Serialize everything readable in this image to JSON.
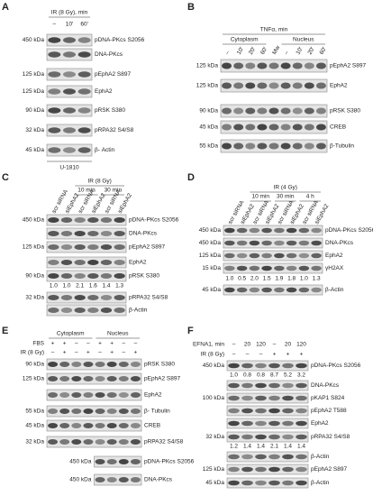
{
  "panels": [
    {
      "letter": "A",
      "headers": [
        "IR (8 Gy), min"
      ],
      "lanes": [
        "–",
        "10'",
        "60'"
      ],
      "rows": [
        {
          "kda": "450 kDa",
          "label": "pDNA-PKcs S2056"
        },
        {
          "label": "DNA-PKcs"
        },
        {
          "kda": "125 kDa",
          "label": "pEphA2 S897"
        },
        {
          "kda": "125 kDa",
          "label": "EphA2"
        },
        {
          "kda": "90 kDa",
          "label": "pRSK S380"
        },
        {
          "kda": "32 kDa",
          "label": "pRPA32 S4/S8"
        },
        {
          "kda": "45 kDa",
          "label": "β- Actin"
        }
      ],
      "footer": "U-1810"
    },
    {
      "letter": "B",
      "headers": [
        "TNFα, min",
        "Cytoplasm",
        "Nucleus"
      ],
      "lanes": [
        "–",
        "10'",
        "20'",
        "60'",
        "Mw",
        "–",
        "10'",
        "20'",
        "60'"
      ],
      "rows": [
        {
          "kda": "125 kDa",
          "label": "pEphA2 S897"
        },
        {
          "kda": "125 kDa",
          "label": "EphA2"
        },
        {
          "kda": "90 kDa",
          "label": "pRSK S380"
        },
        {
          "kda": "45 kDa",
          "label": "CREB"
        },
        {
          "kda": "55 kDa",
          "label": "β-Tubulin"
        }
      ]
    },
    {
      "letter": "C",
      "headers": [
        "IR (8 Gy)",
        "10 min",
        "30 min"
      ],
      "lanes": [
        "scr siRNA",
        "siEphA2",
        "scr siRNA",
        "siEphA2",
        "scr siRNA",
        "siEphA2"
      ],
      "rows": [
        {
          "kda": "450 kDa",
          "label": "pDNA-PKcs S2056"
        },
        {
          "label": "DNA-PKcs"
        },
        {
          "kda": "125 kDa",
          "label": "pEphA2 S897"
        },
        {
          "label": "EphA2"
        },
        {
          "kda": "90 kDa",
          "label": "pRSK S380"
        },
        {
          "kda": "32 kDa",
          "label": "pRPA32 S4/S8"
        },
        {
          "label": "β-Actin"
        }
      ],
      "quants": [
        [
          "1.0",
          "1.0",
          "2.1",
          "1.6",
          "1.4",
          "1.3"
        ]
      ]
    },
    {
      "letter": "D",
      "headers": [
        "IR (4 Gy)",
        "10 min",
        "30 min",
        "4 h"
      ],
      "lanes": [
        "scr siRNA",
        "siEphA2",
        "scr siRNA",
        "siEphA2",
        "scr siRNA",
        "siEphA2",
        "scr siRNA",
        "siEphA2"
      ],
      "rows": [
        {
          "kda": "450 kDa",
          "label": "pDNA-PKcs S2056"
        },
        {
          "kda": "450 kDa",
          "label": "DNA-PKcs"
        },
        {
          "kda": "125 kDa",
          "label": "EphA2"
        },
        {
          "kda": "15 kDa",
          "label": "γH2AX"
        },
        {
          "kda": "45 kDa",
          "label": "β-Actin"
        }
      ],
      "quants": [
        [
          "1.0",
          "0.5",
          "2.0",
          "1.5",
          "1.9",
          "1.8",
          "1.0",
          "1.3"
        ]
      ]
    },
    {
      "letter": "E",
      "headers": [
        "Cytoplasm",
        "Nucleus"
      ],
      "conditions": [
        {
          "name": "FBS",
          "values": [
            "+",
            "+",
            "–",
            "–",
            "+",
            "+",
            "–",
            "–"
          ]
        },
        {
          "name": "IR (8 Gy)",
          "values": [
            "–",
            "+",
            "–",
            "+",
            "–",
            "+",
            "–",
            "+"
          ]
        }
      ],
      "rows": [
        {
          "kda": "90 kDa",
          "label": "pRSK S380"
        },
        {
          "kda": "125 kDa",
          "label": "pEphA2 S897"
        },
        {
          "label": "EphA2"
        },
        {
          "kda": "55 kDa",
          "label": "β- Tubulin"
        },
        {
          "kda": "45 kDa",
          "label": "CREB"
        },
        {
          "kda": "32 kDa",
          "label": "pRPA32 S4/S8"
        },
        {
          "kda": "450 kDa",
          "label": "pDNA-PKcs S2056"
        },
        {
          "kda": "450 kDa",
          "label": "DNA-PKcs"
        }
      ]
    },
    {
      "letter": "F",
      "conditions": [
        {
          "name": "EFNA1, min",
          "values": [
            "–",
            "20",
            "120",
            "–",
            "20",
            "120"
          ]
        },
        {
          "name": "IR (8 Gy)",
          "values": [
            "–",
            "–",
            "–",
            "+",
            "+",
            "+"
          ]
        }
      ],
      "rows": [
        {
          "kda": "450 kDa",
          "label": "pDNA-PKcs S2056"
        },
        {
          "label": "DNA-PKcs"
        },
        {
          "kda": "100 kDa",
          "label": "pKAP1 S824"
        },
        {
          "label": "pEphA2 T588"
        },
        {
          "label": "EphA2"
        },
        {
          "kda": "32 kDa",
          "label": "pRPA32 S4/S8"
        },
        {
          "label": "β-Actin"
        },
        {
          "kda": "125 kDa",
          "label": "pEphA2 S897"
        },
        {
          "kda": "45 kDa",
          "label": "β-Actin"
        }
      ],
      "quants": [
        [
          "1.0",
          "0.8",
          "0.8",
          "8.7",
          "5.2",
          "3.2"
        ],
        [
          "1.2",
          "1.4",
          "1.4",
          "2.1",
          "1.4",
          "1.4"
        ]
      ]
    }
  ]
}
